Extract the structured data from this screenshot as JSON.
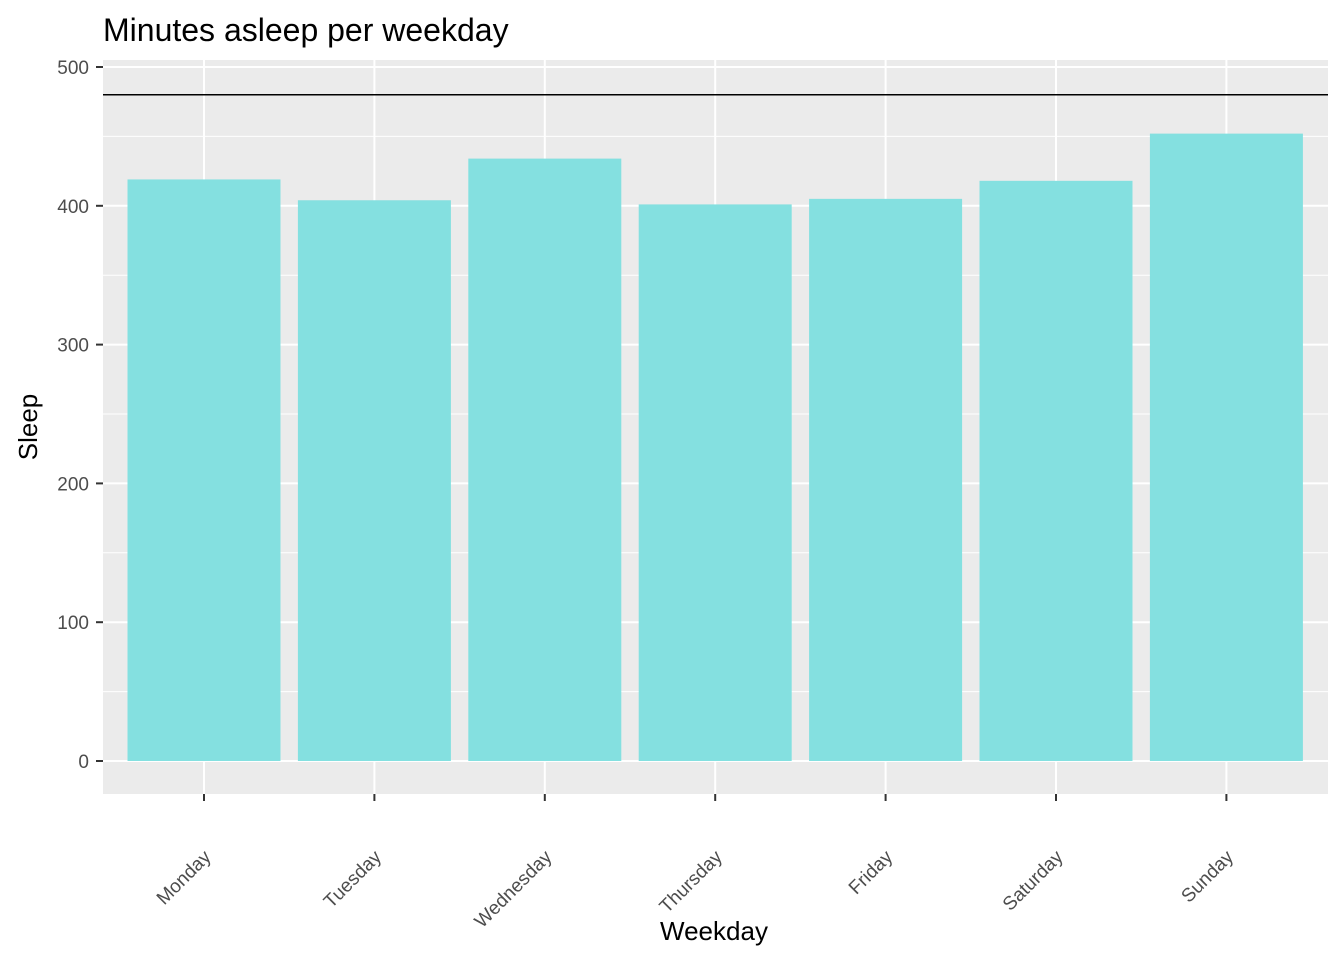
{
  "chart_data": {
    "type": "bar",
    "title": "Minutes asleep per weekday",
    "xlabel": "Weekday",
    "ylabel": "Sleep",
    "categories": [
      "Monday",
      "Tuesday",
      "Wednesday",
      "Thursday",
      "Friday",
      "Saturday",
      "Sunday"
    ],
    "values": [
      419,
      404,
      434,
      401,
      405,
      418,
      452
    ],
    "ylim": [
      0,
      500
    ],
    "yticks": [
      0,
      100,
      200,
      300,
      400,
      500
    ],
    "reference_line": 480,
    "bar_color": "#84E0E0",
    "panel_color": "#EBEBEB",
    "grid": true,
    "legend": "none"
  }
}
